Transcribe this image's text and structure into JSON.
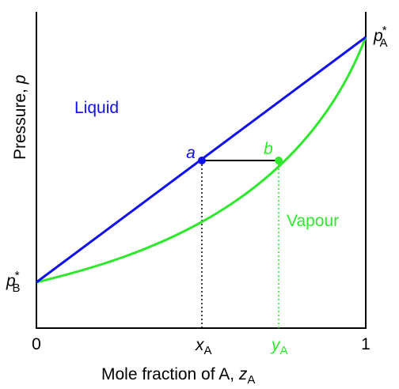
{
  "y_axis": {
    "text": "Pressure, ",
    "var": "p"
  },
  "x_axis": {
    "text": "Mole fraction of A, ",
    "var": "z",
    "sub": "A"
  },
  "x_ticks": {
    "left": "0",
    "right": "1"
  },
  "x_marks": [
    {
      "var": "x",
      "sub": "A"
    },
    {
      "var": "y",
      "sub": "A"
    }
  ],
  "pressure_labels": [
    {
      "var": "p",
      "sup": "*",
      "sub": "A"
    },
    {
      "var": "p",
      "sup": "*",
      "sub": "B"
    }
  ],
  "regions": {
    "liquid": "Liquid",
    "vapour": "Vapour"
  },
  "points": {
    "a": "a",
    "b": "b"
  }
}
